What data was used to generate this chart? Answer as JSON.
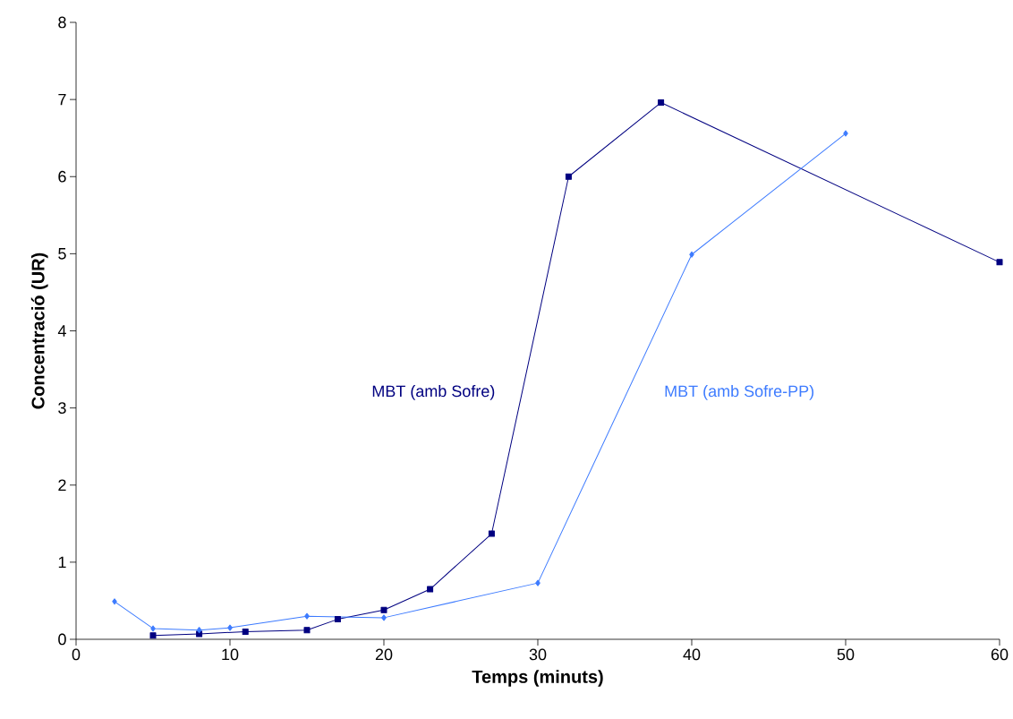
{
  "chart_data": {
    "type": "line",
    "xlabel": "Temps (minuts)",
    "ylabel": "Concentració (UR)",
    "xlim": [
      0,
      60
    ],
    "xticks": [
      0,
      10,
      20,
      30,
      40,
      50,
      60
    ],
    "ylim": [
      0,
      8
    ],
    "yticks": [
      0,
      1,
      2,
      3,
      4,
      5,
      6,
      7,
      8
    ],
    "grid": false,
    "series": [
      {
        "name": "MBT (amb Sofre)",
        "color": "#000080",
        "marker": "square",
        "x": [
          5,
          8,
          11,
          15,
          17,
          20,
          23,
          27,
          32,
          38,
          60
        ],
        "values": [
          0.05,
          0.07,
          0.1,
          0.12,
          0.26,
          0.38,
          0.65,
          1.37,
          6.0,
          6.96,
          4.89
        ]
      },
      {
        "name": "MBT (amb Sofre-PP)",
        "color": "#3d7bff",
        "marker": "diamond",
        "x": [
          2.5,
          5,
          8,
          10,
          15,
          20,
          30,
          40,
          50
        ],
        "values": [
          0.49,
          0.14,
          0.12,
          0.15,
          0.3,
          0.28,
          0.73,
          4.99,
          6.56
        ]
      }
    ]
  }
}
